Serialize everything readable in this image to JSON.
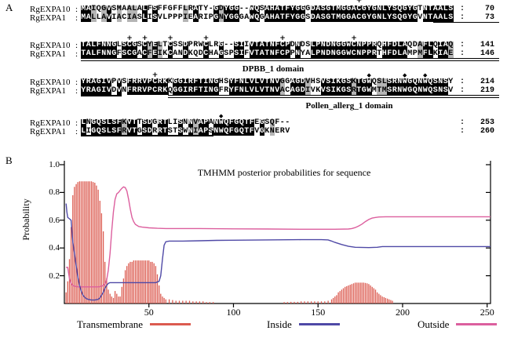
{
  "panels": {
    "a_label": "A",
    "b_label": "B"
  },
  "symbols": {
    "plus": "+",
    "diamond": "◆"
  },
  "alignment": {
    "row_labels": [
      "RgEXPA10",
      "RgEXPA1"
    ],
    "colon": ":",
    "blocks": [
      {
        "seq1": "MAIQGVSMAALALFSFFGFFLRATY-GDYGG--WQSAHATFYGGGDASGTMGGACGYGNLYSQGYGTNTAALS",
        "num1": "70",
        "seq2": "MALLAVIACIASLISVLPPPIEARIPGNYGGGAWQGAHATFYGGSDASGTMGGACGYGNLYSQGYGVNTAALS",
        "num2": "73",
        "plus": [
          54
        ],
        "diamond": [],
        "underlines": [
          {
            "from": 69,
            "to": 81,
            "style": "single",
            "tick": "none"
          }
        ]
      },
      {
        "seq1": "TALFNNGLSCGSCYELTCSSDPRWCLRG--SIIVTATNFCPDNDSLPNDNGGWCNPPRQHFDLAQDAFLQIAQ",
        "num1": "141",
        "seq2": "TALFNNGFSCGACFEIKCANDKQDCHAGSPSIFVTATNFCPPNYALPNDNGGWCNPPRTHFDLAMPMFLKIAE",
        "num2": "146",
        "plus": [
          9,
          12,
          17,
          24,
          39,
          53
        ],
        "diamond": [],
        "underlines": [
          {
            "from": 0,
            "to": 81,
            "style": "double",
            "tick": "none"
          }
        ],
        "label_below": "DPBB_1 domain"
      },
      {
        "seq1": "YRAGIVPVSFRRVPCRKKGGIRFTINGHSYFNLVLVTNVGGAGDVHSVSIKGSKTGWQSLSRNWGQNWQSNSY",
        "num1": "214",
        "seq2": "YRAGIVDVNFRRVPCRKQGGIRFTINGFRYFNLVLVTNVACAGDIVKVSIKGSRTGWMTMSRNWGQNWQSNSV",
        "num2": "219",
        "plus": [
          14
        ],
        "diamond": [
          56,
          63,
          67
        ],
        "underlines": [
          {
            "from": 0,
            "to": 7,
            "style": "single",
            "tick": "end"
          },
          {
            "from": 17,
            "to": 81,
            "style": "double",
            "tick": "start"
          }
        ],
        "label_below": "Pollen_allerg_1 domain"
      },
      {
        "seq1": "LNGQSLSFKVTTSDGRTLISNNVAPANWQFGQTFEGSQF--",
        "num1": "253",
        "seq2": "LIGQSLSFRVTGSDRRTSTSWNIAPSNWQFGQTFVGKNERV",
        "num2": "260",
        "plus": [],
        "diamond": [
          27
        ],
        "underlines": [
          {
            "from": 0,
            "to": 25,
            "style": "single",
            "tick": "end"
          }
        ]
      }
    ]
  },
  "chart_data": {
    "type": "line",
    "title": "TMHMM posterior probabilities for sequence",
    "xlabel": "",
    "ylabel": "Probability",
    "xlim": [
      0,
      252
    ],
    "ylim": [
      0,
      1.0
    ],
    "x_ticks": [
      50,
      100,
      150,
      200,
      250
    ],
    "y_ticks": [
      "1.0",
      "0.8",
      "0.6",
      "0.4",
      "0.2"
    ],
    "y_tick_values": [
      1.0,
      0.8,
      0.6,
      0.4,
      0.2
    ],
    "grid": false,
    "legend_position": "bottom",
    "legend": [
      {
        "label": "Transmembrane",
        "color": "#dc5b50",
        "style": "bars"
      },
      {
        "label": "Inside",
        "color": "#4f49a6",
        "style": "line"
      },
      {
        "label": "Outside",
        "color": "#dc5f9e",
        "style": "line"
      }
    ],
    "series": {
      "transmembrane_bars": [
        [
          1,
          0.08
        ],
        [
          2,
          0.16
        ],
        [
          3,
          0.32
        ],
        [
          4,
          0.55
        ],
        [
          5,
          0.78
        ],
        [
          6,
          0.84
        ],
        [
          7,
          0.86
        ],
        [
          8,
          0.875
        ],
        [
          9,
          0.88
        ],
        [
          10,
          0.88
        ],
        [
          11,
          0.88
        ],
        [
          12,
          0.88
        ],
        [
          13,
          0.88
        ],
        [
          14,
          0.88
        ],
        [
          15,
          0.88
        ],
        [
          16,
          0.88
        ],
        [
          17,
          0.875
        ],
        [
          18,
          0.87
        ],
        [
          19,
          0.85
        ],
        [
          20,
          0.82
        ],
        [
          21,
          0.74
        ],
        [
          22,
          0.65
        ],
        [
          23,
          0.52
        ],
        [
          24,
          0.3
        ],
        [
          25,
          0.18
        ],
        [
          26,
          0.1
        ],
        [
          27,
          0.07
        ],
        [
          28,
          0.05
        ],
        [
          29,
          0.04
        ],
        [
          30,
          0.09
        ],
        [
          31,
          0.07
        ],
        [
          32,
          0.05
        ],
        [
          33,
          0.05
        ],
        [
          34,
          0.12
        ],
        [
          35,
          0.18
        ],
        [
          36,
          0.24
        ],
        [
          37,
          0.27
        ],
        [
          38,
          0.29
        ],
        [
          39,
          0.3
        ],
        [
          40,
          0.3
        ],
        [
          41,
          0.31
        ],
        [
          42,
          0.31
        ],
        [
          43,
          0.31
        ],
        [
          44,
          0.31
        ],
        [
          45,
          0.31
        ],
        [
          46,
          0.31
        ],
        [
          47,
          0.31
        ],
        [
          48,
          0.31
        ],
        [
          49,
          0.31
        ],
        [
          50,
          0.31
        ],
        [
          51,
          0.3
        ],
        [
          52,
          0.3
        ],
        [
          53,
          0.29
        ],
        [
          54,
          0.27
        ],
        [
          55,
          0.21
        ],
        [
          56,
          0.13
        ],
        [
          57,
          0.07
        ],
        [
          58,
          0.05
        ],
        [
          59,
          0.04
        ],
        [
          60,
          0.03
        ],
        [
          62,
          0.03
        ],
        [
          64,
          0.025
        ],
        [
          66,
          0.02
        ],
        [
          68,
          0.02
        ],
        [
          70,
          0.02
        ],
        [
          72,
          0.02
        ],
        [
          74,
          0.02
        ],
        [
          76,
          0.015
        ],
        [
          78,
          0.015
        ],
        [
          80,
          0.015
        ],
        [
          82,
          0.015
        ],
        [
          84,
          0.01
        ],
        [
          86,
          0.01
        ],
        [
          88,
          0.01
        ],
        [
          130,
          0.01
        ],
        [
          132,
          0.01
        ],
        [
          134,
          0.012
        ],
        [
          136,
          0.012
        ],
        [
          138,
          0.012
        ],
        [
          140,
          0.015
        ],
        [
          142,
          0.015
        ],
        [
          144,
          0.015
        ],
        [
          146,
          0.015
        ],
        [
          148,
          0.015
        ],
        [
          150,
          0.015
        ],
        [
          152,
          0.015
        ],
        [
          154,
          0.015
        ],
        [
          156,
          0.02
        ],
        [
          158,
          0.03
        ],
        [
          159,
          0.04
        ],
        [
          160,
          0.05
        ],
        [
          161,
          0.06
        ],
        [
          162,
          0.08
        ],
        [
          163,
          0.09
        ],
        [
          164,
          0.1
        ],
        [
          165,
          0.11
        ],
        [
          166,
          0.12
        ],
        [
          167,
          0.125
        ],
        [
          168,
          0.13
        ],
        [
          169,
          0.135
        ],
        [
          170,
          0.14
        ],
        [
          171,
          0.145
        ],
        [
          172,
          0.15
        ],
        [
          173,
          0.15
        ],
        [
          174,
          0.15
        ],
        [
          175,
          0.15
        ],
        [
          176,
          0.15
        ],
        [
          177,
          0.15
        ],
        [
          178,
          0.148
        ],
        [
          179,
          0.145
        ],
        [
          180,
          0.14
        ],
        [
          181,
          0.13
        ],
        [
          182,
          0.12
        ],
        [
          183,
          0.11
        ],
        [
          184,
          0.1
        ],
        [
          185,
          0.08
        ],
        [
          186,
          0.07
        ],
        [
          187,
          0.06
        ],
        [
          188,
          0.05
        ],
        [
          189,
          0.045
        ],
        [
          190,
          0.04
        ],
        [
          191,
          0.035
        ],
        [
          192,
          0.03
        ],
        [
          193,
          0.025
        ],
        [
          194,
          0.02
        ]
      ],
      "inside": [
        [
          1,
          0.72
        ],
        [
          1.5,
          0.66
        ],
        [
          2,
          0.62
        ],
        [
          3,
          0.61
        ],
        [
          4,
          0.6
        ],
        [
          4.5,
          0.52
        ],
        [
          5,
          0.44
        ],
        [
          6,
          0.36
        ],
        [
          7,
          0.27
        ],
        [
          8,
          0.19
        ],
        [
          9,
          0.13
        ],
        [
          10,
          0.09
        ],
        [
          11,
          0.06
        ],
        [
          12,
          0.045
        ],
        [
          13,
          0.035
        ],
        [
          14,
          0.03
        ],
        [
          16,
          0.025
        ],
        [
          18,
          0.025
        ],
        [
          20,
          0.03
        ],
        [
          21,
          0.04
        ],
        [
          22,
          0.06
        ],
        [
          23,
          0.08
        ],
        [
          24,
          0.11
        ],
        [
          25,
          0.13
        ],
        [
          26,
          0.145
        ],
        [
          27,
          0.15
        ],
        [
          30,
          0.15
        ],
        [
          40,
          0.15
        ],
        [
          50,
          0.15
        ],
        [
          54,
          0.15
        ],
        [
          56,
          0.16
        ],
        [
          57,
          0.2
        ],
        [
          58,
          0.32
        ],
        [
          59,
          0.42
        ],
        [
          60,
          0.445
        ],
        [
          62,
          0.45
        ],
        [
          70,
          0.45
        ],
        [
          80,
          0.452
        ],
        [
          90,
          0.455
        ],
        [
          100,
          0.456
        ],
        [
          120,
          0.458
        ],
        [
          140,
          0.46
        ],
        [
          152,
          0.46
        ],
        [
          156,
          0.458
        ],
        [
          158,
          0.45
        ],
        [
          160,
          0.44
        ],
        [
          164,
          0.425
        ],
        [
          168,
          0.412
        ],
        [
          172,
          0.405
        ],
        [
          180,
          0.403
        ],
        [
          185,
          0.405
        ],
        [
          188,
          0.41
        ],
        [
          200,
          0.41
        ],
        [
          220,
          0.41
        ],
        [
          240,
          0.41
        ],
        [
          252,
          0.41
        ]
      ],
      "outside": [
        [
          1,
          0.26
        ],
        [
          2,
          0.26
        ],
        [
          2.5,
          0.22
        ],
        [
          3,
          0.18
        ],
        [
          4,
          0.145
        ],
        [
          5,
          0.13
        ],
        [
          6,
          0.125
        ],
        [
          8,
          0.12
        ],
        [
          10,
          0.12
        ],
        [
          15,
          0.12
        ],
        [
          20,
          0.12
        ],
        [
          21,
          0.122
        ],
        [
          22,
          0.125
        ],
        [
          23,
          0.13
        ],
        [
          24,
          0.14
        ],
        [
          25,
          0.17
        ],
        [
          26,
          0.24
        ],
        [
          27,
          0.36
        ],
        [
          28,
          0.52
        ],
        [
          29,
          0.66
        ],
        [
          30,
          0.75
        ],
        [
          31,
          0.79
        ],
        [
          32,
          0.8
        ],
        [
          33,
          0.815
        ],
        [
          34,
          0.83
        ],
        [
          35,
          0.84
        ],
        [
          36,
          0.835
        ],
        [
          37,
          0.81
        ],
        [
          38,
          0.75
        ],
        [
          39,
          0.68
        ],
        [
          40,
          0.62
        ],
        [
          41,
          0.59
        ],
        [
          42,
          0.57
        ],
        [
          44,
          0.555
        ],
        [
          46,
          0.55
        ],
        [
          50,
          0.545
        ],
        [
          55,
          0.542
        ],
        [
          60,
          0.54
        ],
        [
          80,
          0.54
        ],
        [
          100,
          0.538
        ],
        [
          120,
          0.537
        ],
        [
          140,
          0.535
        ],
        [
          160,
          0.535
        ],
        [
          168,
          0.537
        ],
        [
          170,
          0.54
        ],
        [
          172,
          0.547
        ],
        [
          174,
          0.558
        ],
        [
          176,
          0.572
        ],
        [
          178,
          0.59
        ],
        [
          180,
          0.605
        ],
        [
          182,
          0.615
        ],
        [
          184,
          0.62
        ],
        [
          186,
          0.623
        ],
        [
          190,
          0.625
        ],
        [
          200,
          0.625
        ],
        [
          220,
          0.625
        ],
        [
          240,
          0.625
        ],
        [
          252,
          0.625
        ]
      ]
    }
  }
}
